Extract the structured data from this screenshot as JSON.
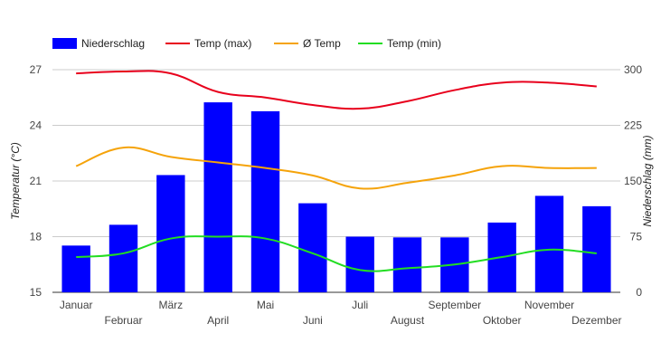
{
  "chart_data": {
    "type": "bar+line",
    "categories": [
      "Januar",
      "Februar",
      "März",
      "April",
      "Mai",
      "Juni",
      "Juli",
      "August",
      "September",
      "Oktober",
      "November",
      "Dezember"
    ],
    "bar_series": {
      "name": "Niederschlag",
      "color": "#0000ff",
      "axis": "right",
      "values": [
        63,
        91,
        158,
        256,
        244,
        120,
        75,
        74,
        74,
        94,
        130,
        116
      ]
    },
    "line_series": [
      {
        "name": "Temp (max)",
        "color": "#e8001c",
        "axis": "left",
        "values": [
          26.8,
          26.9,
          26.8,
          25.8,
          25.5,
          25.1,
          24.9,
          25.3,
          25.9,
          26.3,
          26.3,
          26.1
        ]
      },
      {
        "name": "Ø Temp",
        "color": "#f5a30a",
        "axis": "left",
        "values": [
          21.8,
          22.8,
          22.3,
          22.0,
          21.7,
          21.3,
          20.6,
          20.9,
          21.3,
          21.8,
          21.7,
          21.7
        ]
      },
      {
        "name": "Temp (min)",
        "color": "#22dd22",
        "axis": "left",
        "values": [
          16.9,
          17.1,
          17.9,
          18.0,
          17.9,
          17.1,
          16.2,
          16.3,
          16.5,
          16.9,
          17.3,
          17.1
        ]
      }
    ],
    "y_left": {
      "label": "Temperatur (°C)",
      "min": 15,
      "max": 27,
      "ticks": [
        15,
        18,
        21,
        24,
        27
      ]
    },
    "y_right": {
      "label": "Niederschlag (mm)",
      "min": 0,
      "max": 300,
      "ticks": [
        0,
        75,
        150,
        225,
        300
      ]
    },
    "grid": true,
    "legend_position": "top-left"
  }
}
